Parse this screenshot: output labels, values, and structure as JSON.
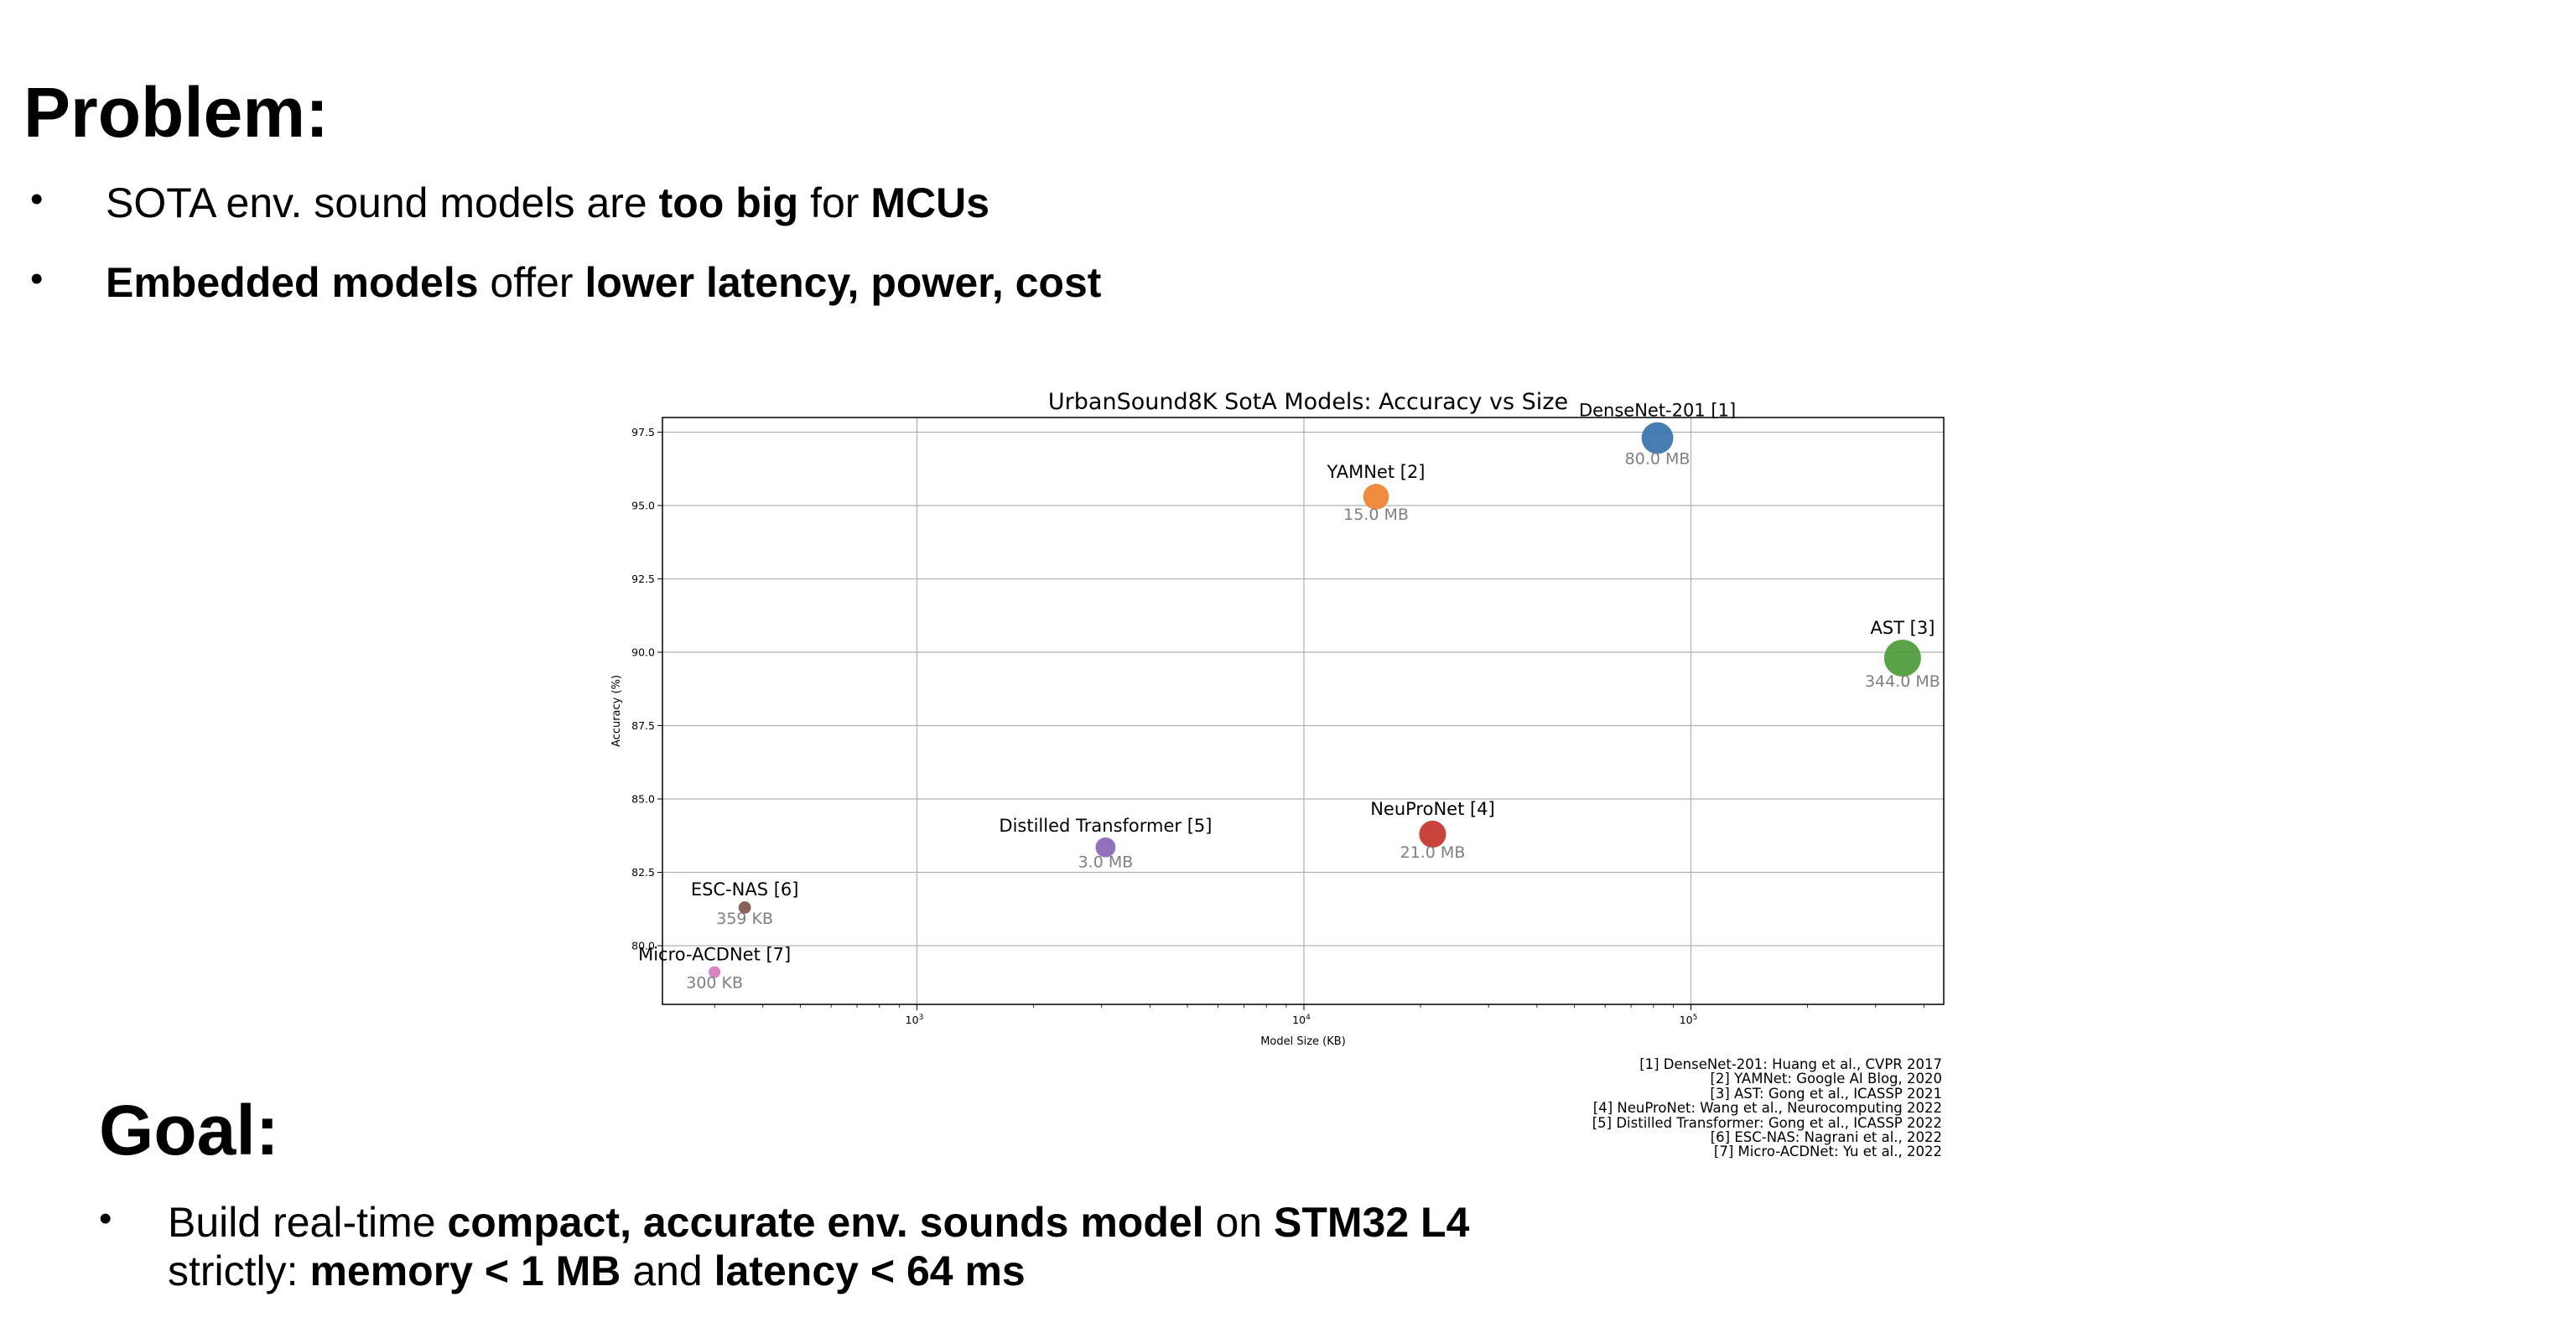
{
  "problem": {
    "title": "Problem:",
    "bullets": [
      [
        {
          "t": "SOTA env. sound models are ",
          "b": false
        },
        {
          "t": "too big",
          "b": true
        },
        {
          "t": " for ",
          "b": false
        },
        {
          "t": "MCUs",
          "b": true
        }
      ],
      [
        {
          "t": "Embedded models",
          "b": true
        },
        {
          "t": " offer ",
          "b": false
        },
        {
          "t": "lower latency, power, cost",
          "b": true
        }
      ]
    ]
  },
  "goal": {
    "title": "Goal:",
    "bullets": [
      [
        {
          "t": "Build real-time ",
          "b": false
        },
        {
          "t": "compact, accurate env. sounds model",
          "b": true
        },
        {
          "t": " on ",
          "b": false
        },
        {
          "t": "STM32 L4",
          "b": true
        }
      ],
      [
        {
          "t": "strictly: ",
          "b": false
        },
        {
          "t": "memory < 1 MB",
          "b": true
        },
        {
          "t": " and ",
          "b": false
        },
        {
          "t": "latency < 64 ms",
          "b": true
        }
      ]
    ],
    "bullet_char": "•"
  },
  "bullet_char": "•",
  "chart_data": {
    "type": "scatter",
    "title": "UrbanSound8K SotA Models: Accuracy vs Size",
    "xlabel": "Model Size (KB)",
    "ylabel": "Accuracy (%)",
    "xscale": "log",
    "xlim": [
      220,
      450000
    ],
    "ylim": [
      78.0,
      98.0
    ],
    "yticks": [
      80.0,
      82.5,
      85.0,
      87.5,
      90.0,
      92.5,
      95.0,
      97.5
    ],
    "ytick_labels": [
      "80.0",
      "82.5",
      "85.0",
      "87.5",
      "90.0",
      "92.5",
      "95.0",
      "97.5"
    ],
    "xticks": [
      1000,
      10000,
      100000
    ],
    "xtick_labels": [
      {
        "base": "10",
        "exp": "3"
      },
      {
        "base": "10",
        "exp": "4"
      },
      {
        "base": "10",
        "exp": "5"
      }
    ],
    "grid": true,
    "points": [
      {
        "name": "DenseNet-201 [1]",
        "size_label": "80.0 MB",
        "x": 81920,
        "y": 97.3,
        "color": "#3d76af"
      },
      {
        "name": "YAMNet [2]",
        "size_label": "15.0 MB",
        "x": 15360,
        "y": 95.3,
        "color": "#ef8636"
      },
      {
        "name": "AST [3]",
        "size_label": "344.0 MB",
        "x": 352256,
        "y": 89.8,
        "color": "#519e3e"
      },
      {
        "name": "NeuProNet [4]",
        "size_label": "21.0 MB",
        "x": 21504,
        "y": 83.8,
        "color": "#c53932"
      },
      {
        "name": "Distilled Transformer [5]",
        "size_label": "3.0 MB",
        "x": 3072,
        "y": 83.35,
        "color": "#8d69b8"
      },
      {
        "name": "ESC-NAS [6]",
        "size_label": "359 KB",
        "x": 359,
        "y": 81.3,
        "color": "#84584e"
      },
      {
        "name": "Micro-ACDNet [7]",
        "size_label": "300 KB",
        "x": 300,
        "y": 79.1,
        "color": "#d57dbe"
      }
    ]
  },
  "references": [
    "[1] DenseNet-201: Huang et al., CVPR 2017",
    "[2] YAMNet: Google AI Blog, 2020",
    "[3] AST: Gong et al., ICASSP 2021",
    "[4] NeuProNet: Wang et al., Neurocomputing 2022",
    "[5] Distilled Transformer: Gong et al., ICASSP 2022",
    "[6] ESC-NAS: Nagrani et al., 2022",
    "[7] Micro-ACDNet: Yu et al., 2022"
  ]
}
